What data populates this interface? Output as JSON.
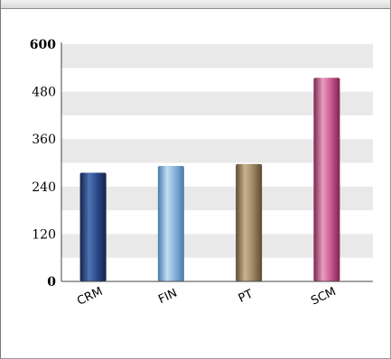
{
  "chart_data": {
    "type": "bar",
    "categories": [
      "CRM",
      "FIN",
      "PT",
      "SCM"
    ],
    "values": [
      275,
      292,
      297,
      515
    ],
    "ylim": [
      0,
      600
    ],
    "yticks": [
      0,
      120,
      240,
      360,
      480,
      600
    ],
    "ytick_labels": [
      "0",
      "120",
      "240",
      "360",
      "480",
      "600"
    ],
    "bold_ticks": [
      "0",
      "600"
    ],
    "grid": true,
    "bar_colors": [
      "#2b4a8a",
      "#86b2dc",
      "#a08868",
      "#cc5a8e"
    ],
    "bar_dark": [
      "#13234c",
      "#4a7aab",
      "#5e4a33",
      "#7a2552"
    ],
    "bar_light": [
      "#4f73b4",
      "#c2dcf2",
      "#c9b48f",
      "#e89dbf"
    ],
    "band_color": "#e9e9e9"
  }
}
